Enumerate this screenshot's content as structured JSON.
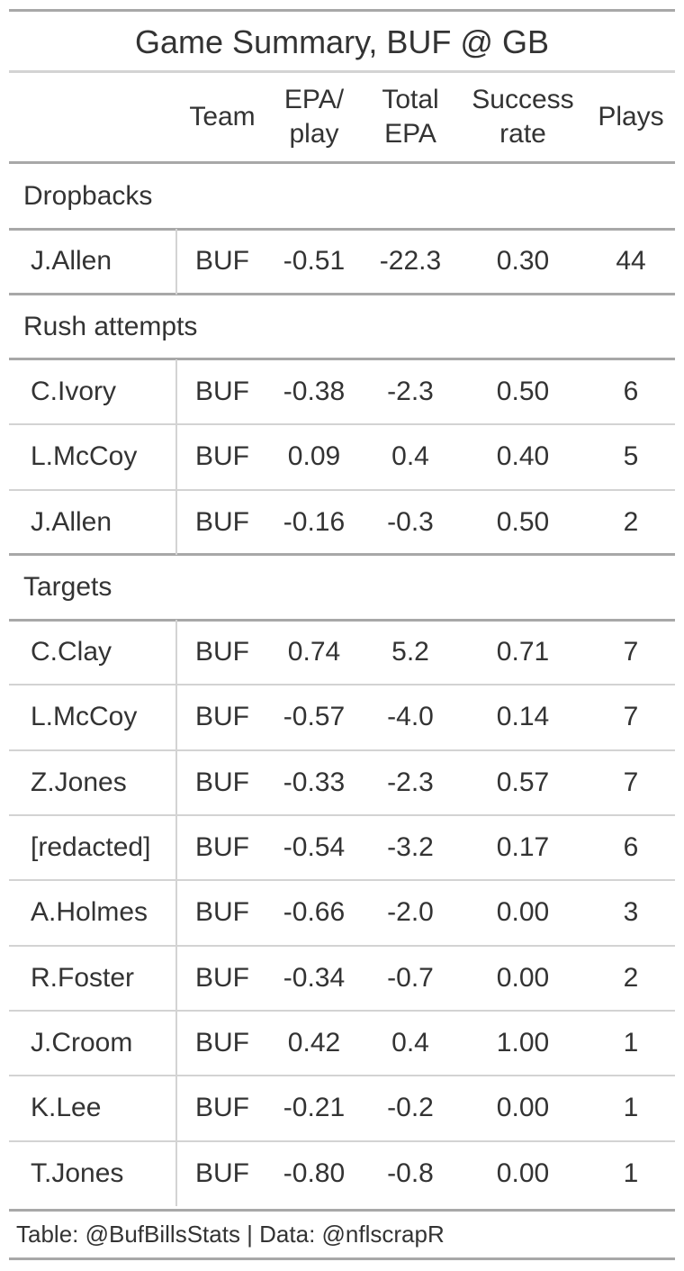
{
  "title": "Game Summary, BUF @ GB",
  "columns": {
    "team": "Team",
    "epa_play_1": "EPA/",
    "epa_play_2": "play",
    "total_epa_1": "Total",
    "total_epa_2": "EPA",
    "success_1": "Success",
    "success_2": "rate",
    "plays": "Plays"
  },
  "groups": [
    {
      "label": "Dropbacks",
      "rows": [
        {
          "name": "J.Allen",
          "team": "BUF",
          "epa_play": "-0.51",
          "total_epa": "-22.3",
          "success_rate": "0.30",
          "plays": "44"
        }
      ]
    },
    {
      "label": "Rush attempts",
      "rows": [
        {
          "name": "C.Ivory",
          "team": "BUF",
          "epa_play": "-0.38",
          "total_epa": "-2.3",
          "success_rate": "0.50",
          "plays": "6"
        },
        {
          "name": "L.McCoy",
          "team": "BUF",
          "epa_play": "0.09",
          "total_epa": "0.4",
          "success_rate": "0.40",
          "plays": "5"
        },
        {
          "name": "J.Allen",
          "team": "BUF",
          "epa_play": "-0.16",
          "total_epa": "-0.3",
          "success_rate": "0.50",
          "plays": "2"
        }
      ]
    },
    {
      "label": "Targets",
      "rows": [
        {
          "name": "C.Clay",
          "team": "BUF",
          "epa_play": "0.74",
          "total_epa": "5.2",
          "success_rate": "0.71",
          "plays": "7"
        },
        {
          "name": "L.McCoy",
          "team": "BUF",
          "epa_play": "-0.57",
          "total_epa": "-4.0",
          "success_rate": "0.14",
          "plays": "7"
        },
        {
          "name": "Z.Jones",
          "team": "BUF",
          "epa_play": "-0.33",
          "total_epa": "-2.3",
          "success_rate": "0.57",
          "plays": "7"
        },
        {
          "name": "[redacted]",
          "team": "BUF",
          "epa_play": "-0.54",
          "total_epa": "-3.2",
          "success_rate": "0.17",
          "plays": "6"
        },
        {
          "name": "A.Holmes",
          "team": "BUF",
          "epa_play": "-0.66",
          "total_epa": "-2.0",
          "success_rate": "0.00",
          "plays": "3"
        },
        {
          "name": "R.Foster",
          "team": "BUF",
          "epa_play": "-0.34",
          "total_epa": "-0.7",
          "success_rate": "0.00",
          "plays": "2"
        },
        {
          "name": "J.Croom",
          "team": "BUF",
          "epa_play": "0.42",
          "total_epa": "0.4",
          "success_rate": "1.00",
          "plays": "1"
        },
        {
          "name": "K.Lee",
          "team": "BUF",
          "epa_play": "-0.21",
          "total_epa": "-0.2",
          "success_rate": "0.00",
          "plays": "1"
        },
        {
          "name": "T.Jones",
          "team": "BUF",
          "epa_play": "-0.80",
          "total_epa": "-0.8",
          "success_rate": "0.00",
          "plays": "1"
        }
      ]
    }
  ],
  "footer": "Table: @BufBillsStats | Data: @nflscrapR"
}
